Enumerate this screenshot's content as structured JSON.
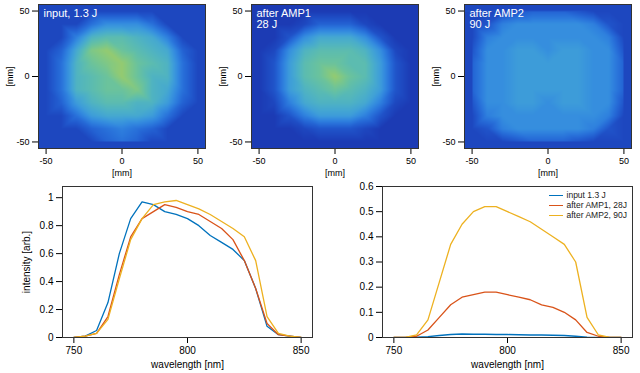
{
  "chart_data": [
    {
      "type": "heatmap",
      "annotation": "input, 1.3 J",
      "x": [
        -50,
        -40,
        -30,
        -20,
        -10,
        0,
        10,
        20,
        30,
        40,
        50
      ],
      "y": [
        50,
        40,
        30,
        20,
        10,
        0,
        -10,
        -20,
        -30,
        -40,
        -50
      ],
      "z": [
        [
          0.1,
          0.1,
          0.1,
          0.1,
          0.1,
          0.1,
          0.1,
          0.1,
          0.1,
          0.1,
          0.1
        ],
        [
          0.1,
          0.1,
          0.1,
          0.25,
          0.35,
          0.35,
          0.35,
          0.25,
          0.1,
          0.1,
          0.1
        ],
        [
          0.1,
          0.1,
          0.3,
          0.5,
          0.55,
          0.55,
          0.5,
          0.45,
          0.3,
          0.1,
          0.1
        ],
        [
          0.1,
          0.2,
          0.45,
          0.65,
          0.7,
          0.6,
          0.55,
          0.5,
          0.45,
          0.2,
          0.1
        ],
        [
          0.1,
          0.25,
          0.5,
          0.6,
          0.65,
          0.7,
          0.6,
          0.55,
          0.5,
          0.25,
          0.1
        ],
        [
          0.1,
          0.25,
          0.5,
          0.55,
          0.6,
          0.7,
          0.6,
          0.5,
          0.5,
          0.25,
          0.1
        ],
        [
          0.1,
          0.25,
          0.5,
          0.55,
          0.6,
          0.6,
          0.65,
          0.5,
          0.45,
          0.25,
          0.1
        ],
        [
          0.1,
          0.2,
          0.4,
          0.5,
          0.55,
          0.55,
          0.5,
          0.5,
          0.4,
          0.2,
          0.1
        ],
        [
          0.1,
          0.1,
          0.25,
          0.4,
          0.45,
          0.45,
          0.45,
          0.4,
          0.25,
          0.1,
          0.1
        ],
        [
          0.1,
          0.1,
          0.1,
          0.2,
          0.25,
          0.3,
          0.25,
          0.2,
          0.1,
          0.1,
          0.1
        ],
        [
          0.1,
          0.1,
          0.1,
          0.1,
          0.2,
          0.25,
          0.2,
          0.1,
          0.1,
          0.1,
          0.1
        ]
      ],
      "zlim": [
        0,
        1
      ],
      "xlim": [
        -55,
        55
      ],
      "ylim": [
        -55,
        55
      ],
      "xticks": [
        -50,
        0,
        50
      ],
      "yticks": [
        -50,
        0,
        50
      ],
      "xlabel": "[mm]",
      "ylabel": "[mm]"
    },
    {
      "type": "heatmap",
      "annotation": "after AMP1\n28 J",
      "x": [
        -50,
        -40,
        -30,
        -20,
        -10,
        0,
        10,
        20,
        30,
        40,
        50
      ],
      "y": [
        50,
        40,
        30,
        20,
        10,
        0,
        -10,
        -20,
        -30,
        -40,
        -50
      ],
      "z": [
        [
          0.05,
          0.05,
          0.05,
          0.05,
          0.05,
          0.05,
          0.05,
          0.05,
          0.05,
          0.05,
          0.05
        ],
        [
          0.05,
          0.05,
          0.05,
          0.1,
          0.2,
          0.2,
          0.2,
          0.1,
          0.05,
          0.05,
          0.05
        ],
        [
          0.05,
          0.05,
          0.15,
          0.35,
          0.45,
          0.45,
          0.45,
          0.35,
          0.15,
          0.05,
          0.05
        ],
        [
          0.05,
          0.1,
          0.35,
          0.5,
          0.55,
          0.55,
          0.55,
          0.5,
          0.35,
          0.1,
          0.05
        ],
        [
          0.05,
          0.15,
          0.4,
          0.55,
          0.6,
          0.6,
          0.55,
          0.55,
          0.4,
          0.15,
          0.05
        ],
        [
          0.05,
          0.15,
          0.4,
          0.55,
          0.6,
          0.7,
          0.6,
          0.55,
          0.4,
          0.15,
          0.05
        ],
        [
          0.05,
          0.15,
          0.4,
          0.5,
          0.55,
          0.6,
          0.55,
          0.5,
          0.4,
          0.15,
          0.05
        ],
        [
          0.05,
          0.1,
          0.3,
          0.45,
          0.5,
          0.5,
          0.5,
          0.45,
          0.3,
          0.1,
          0.05
        ],
        [
          0.05,
          0.05,
          0.15,
          0.3,
          0.4,
          0.4,
          0.4,
          0.3,
          0.15,
          0.05,
          0.05
        ],
        [
          0.05,
          0.05,
          0.05,
          0.1,
          0.15,
          0.15,
          0.15,
          0.1,
          0.05,
          0.05,
          0.05
        ],
        [
          0.05,
          0.05,
          0.05,
          0.05,
          0.05,
          0.05,
          0.05,
          0.05,
          0.05,
          0.05,
          0.05
        ]
      ],
      "zlim": [
        0,
        1
      ],
      "xlim": [
        -55,
        55
      ],
      "ylim": [
        -55,
        55
      ],
      "xticks": [
        -50,
        0,
        50
      ],
      "yticks": [
        -50,
        0,
        50
      ],
      "xlabel": "[mm]",
      "ylabel": "[mm]"
    },
    {
      "type": "heatmap",
      "annotation": "after AMP2\n90 J",
      "x": [
        -50,
        -40,
        -30,
        -20,
        -10,
        0,
        10,
        20,
        30,
        40,
        50
      ],
      "y": [
        50,
        40,
        30,
        20,
        10,
        0,
        -10,
        -20,
        -30,
        -40,
        -50
      ],
      "z": [
        [
          0.1,
          0.1,
          0.1,
          0.15,
          0.2,
          0.2,
          0.2,
          0.15,
          0.1,
          0.1,
          0.1
        ],
        [
          0.1,
          0.15,
          0.3,
          0.35,
          0.35,
          0.35,
          0.35,
          0.35,
          0.3,
          0.15,
          0.1
        ],
        [
          0.1,
          0.3,
          0.35,
          0.35,
          0.35,
          0.35,
          0.35,
          0.35,
          0.35,
          0.3,
          0.1
        ],
        [
          0.15,
          0.35,
          0.35,
          0.4,
          0.4,
          0.35,
          0.4,
          0.4,
          0.35,
          0.35,
          0.15
        ],
        [
          0.2,
          0.35,
          0.35,
          0.4,
          0.4,
          0.4,
          0.4,
          0.4,
          0.35,
          0.35,
          0.2
        ],
        [
          0.2,
          0.35,
          0.35,
          0.4,
          0.4,
          0.4,
          0.4,
          0.4,
          0.35,
          0.35,
          0.2
        ],
        [
          0.2,
          0.35,
          0.35,
          0.4,
          0.4,
          0.4,
          0.4,
          0.4,
          0.35,
          0.35,
          0.2
        ],
        [
          0.15,
          0.35,
          0.35,
          0.4,
          0.4,
          0.35,
          0.4,
          0.4,
          0.35,
          0.35,
          0.15
        ],
        [
          0.1,
          0.3,
          0.35,
          0.35,
          0.35,
          0.35,
          0.35,
          0.35,
          0.35,
          0.3,
          0.1
        ],
        [
          0.1,
          0.15,
          0.3,
          0.35,
          0.35,
          0.35,
          0.35,
          0.35,
          0.3,
          0.15,
          0.1
        ],
        [
          0.1,
          0.1,
          0.1,
          0.15,
          0.2,
          0.2,
          0.2,
          0.15,
          0.1,
          0.1,
          0.1
        ]
      ],
      "zlim": [
        0,
        1
      ],
      "xlim": [
        -55,
        55
      ],
      "ylim": [
        -55,
        55
      ],
      "xticks": [
        -50,
        0,
        50
      ],
      "yticks": [
        -50,
        0,
        50
      ],
      "xlabel": "[mm]",
      "ylabel": "[mm]"
    },
    {
      "type": "line",
      "x": [
        750,
        755,
        760,
        765,
        770,
        775,
        780,
        785,
        790,
        795,
        800,
        805,
        810,
        815,
        820,
        825,
        830,
        835,
        840,
        845,
        850
      ],
      "series": [
        {
          "name": "input 1.3 J",
          "color": "#0072bd",
          "values": [
            0,
            0.01,
            0.05,
            0.25,
            0.6,
            0.85,
            0.97,
            0.95,
            0.9,
            0.88,
            0.85,
            0.8,
            0.73,
            0.68,
            0.63,
            0.55,
            0.35,
            0.08,
            0.02,
            0.01,
            0
          ]
        },
        {
          "name": "after AMP1, 28J",
          "color": "#d95319",
          "values": [
            0,
            0.01,
            0.03,
            0.15,
            0.45,
            0.72,
            0.85,
            0.9,
            0.95,
            0.93,
            0.9,
            0.88,
            0.83,
            0.78,
            0.7,
            0.55,
            0.35,
            0.1,
            0.02,
            0.01,
            0
          ]
        },
        {
          "name": "after AMP2, 90J",
          "color": "#edb120",
          "values": [
            0,
            0.01,
            0.03,
            0.13,
            0.42,
            0.7,
            0.85,
            0.95,
            0.97,
            0.98,
            0.95,
            0.92,
            0.88,
            0.83,
            0.78,
            0.72,
            0.55,
            0.15,
            0.03,
            0.01,
            0
          ]
        }
      ],
      "xlim": [
        745,
        855
      ],
      "ylim": [
        0,
        1.08
      ],
      "xticks": [
        750,
        800,
        850
      ],
      "yticks": [
        0,
        0.2,
        0.4,
        0.6,
        0.8,
        1
      ],
      "xlabel": "wavelength [nm]",
      "ylabel": "intensity [arb.]"
    },
    {
      "type": "line",
      "x": [
        750,
        755,
        760,
        765,
        770,
        775,
        780,
        785,
        790,
        795,
        800,
        805,
        810,
        815,
        820,
        825,
        830,
        835,
        840,
        845,
        850
      ],
      "series": [
        {
          "name": "input 1.3 J",
          "color": "#0072bd",
          "values": [
            0,
            0,
            0.001,
            0.003,
            0.008,
            0.012,
            0.014,
            0.013,
            0.013,
            0.012,
            0.012,
            0.011,
            0.01,
            0.01,
            0.009,
            0.008,
            0.005,
            0.001,
            0,
            0,
            0
          ]
        },
        {
          "name": "after AMP1, 28J",
          "color": "#d95319",
          "values": [
            0,
            0,
            0.005,
            0.03,
            0.08,
            0.13,
            0.16,
            0.17,
            0.18,
            0.18,
            0.17,
            0.16,
            0.15,
            0.13,
            0.12,
            0.1,
            0.07,
            0.02,
            0.005,
            0,
            0
          ]
        },
        {
          "name": "after AMP2, 90J",
          "color": "#edb120",
          "values": [
            0,
            0,
            0.01,
            0.07,
            0.22,
            0.37,
            0.45,
            0.5,
            0.52,
            0.52,
            0.5,
            0.48,
            0.46,
            0.43,
            0.4,
            0.37,
            0.3,
            0.08,
            0.01,
            0,
            0
          ]
        }
      ],
      "xlim": [
        745,
        855
      ],
      "ylim": [
        0,
        0.6
      ],
      "xticks": [
        750,
        800,
        850
      ],
      "yticks": [
        0,
        0.1,
        0.2,
        0.3,
        0.4,
        0.5,
        0.6
      ],
      "xlabel": "wavelength [nm]",
      "legend": "top-right"
    }
  ]
}
